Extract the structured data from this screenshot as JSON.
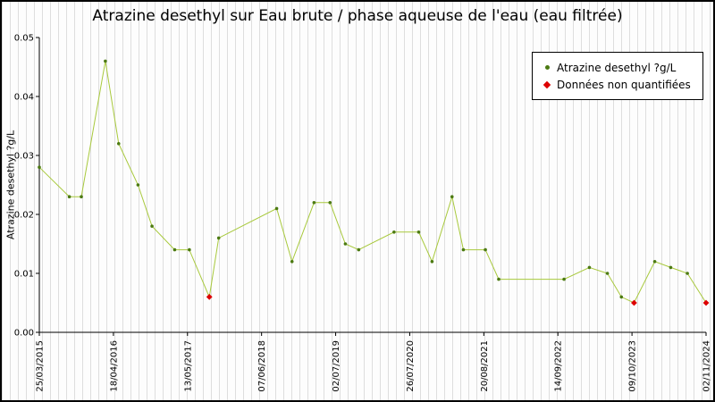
{
  "chart_data": {
    "type": "line",
    "title": "Atrazine desethyl sur Eau brute / phase aqueuse de l'eau (eau filtrée)",
    "ylabel": "Atrazine desethyl ?g/L",
    "ylim": [
      0,
      0.05
    ],
    "yticks": [
      0,
      0.01,
      0.02,
      0.03,
      0.04,
      0.05
    ],
    "xticklabels": [
      "25/03/2015",
      "18/04/2016",
      "13/05/2017",
      "07/06/2018",
      "02/07/2019",
      "26/07/2020",
      "20/08/2021",
      "14/09/2022",
      "09/10/2023",
      "02/11/2024"
    ],
    "grid": "off",
    "legend_position": "top-right",
    "line_color": "#a8c93c",
    "marker_color": "#4c7a12",
    "nq_color": "#dd0000",
    "legend": [
      {
        "label": "Atrazine desethyl ?g/L",
        "marker": "dot",
        "color": "#4c7a12"
      },
      {
        "label": "Données non quantifiées",
        "marker": "diamond",
        "color": "#dd0000"
      }
    ],
    "series": [
      {
        "name": "Atrazine desethyl ?g/L",
        "x_unit": "fraction-of-x-axis",
        "points": [
          {
            "x": 0.0,
            "y": 0.028
          },
          {
            "x": 0.045,
            "y": 0.023
          },
          {
            "x": 0.063,
            "y": 0.023
          },
          {
            "x": 0.099,
            "y": 0.046
          },
          {
            "x": 0.119,
            "y": 0.032
          },
          {
            "x": 0.148,
            "y": 0.025
          },
          {
            "x": 0.169,
            "y": 0.018
          },
          {
            "x": 0.203,
            "y": 0.014
          },
          {
            "x": 0.225,
            "y": 0.014
          },
          {
            "x": 0.255,
            "y": 0.006,
            "nq": true
          },
          {
            "x": 0.269,
            "y": 0.016
          },
          {
            "x": 0.356,
            "y": 0.021
          },
          {
            "x": 0.379,
            "y": 0.012
          },
          {
            "x": 0.412,
            "y": 0.022
          },
          {
            "x": 0.436,
            "y": 0.022
          },
          {
            "x": 0.459,
            "y": 0.015
          },
          {
            "x": 0.479,
            "y": 0.014
          },
          {
            "x": 0.532,
            "y": 0.017
          },
          {
            "x": 0.569,
            "y": 0.017
          },
          {
            "x": 0.589,
            "y": 0.012
          },
          {
            "x": 0.619,
            "y": 0.023
          },
          {
            "x": 0.636,
            "y": 0.014
          },
          {
            "x": 0.669,
            "y": 0.014
          },
          {
            "x": 0.689,
            "y": 0.009
          },
          {
            "x": 0.787,
            "y": 0.009
          },
          {
            "x": 0.825,
            "y": 0.011
          },
          {
            "x": 0.852,
            "y": 0.01
          },
          {
            "x": 0.873,
            "y": 0.006
          },
          {
            "x": 0.892,
            "y": 0.005,
            "nq": true
          },
          {
            "x": 0.923,
            "y": 0.012
          },
          {
            "x": 0.947,
            "y": 0.011
          },
          {
            "x": 0.972,
            "y": 0.01
          },
          {
            "x": 1.0,
            "y": 0.005,
            "nq": true
          }
        ]
      }
    ]
  }
}
